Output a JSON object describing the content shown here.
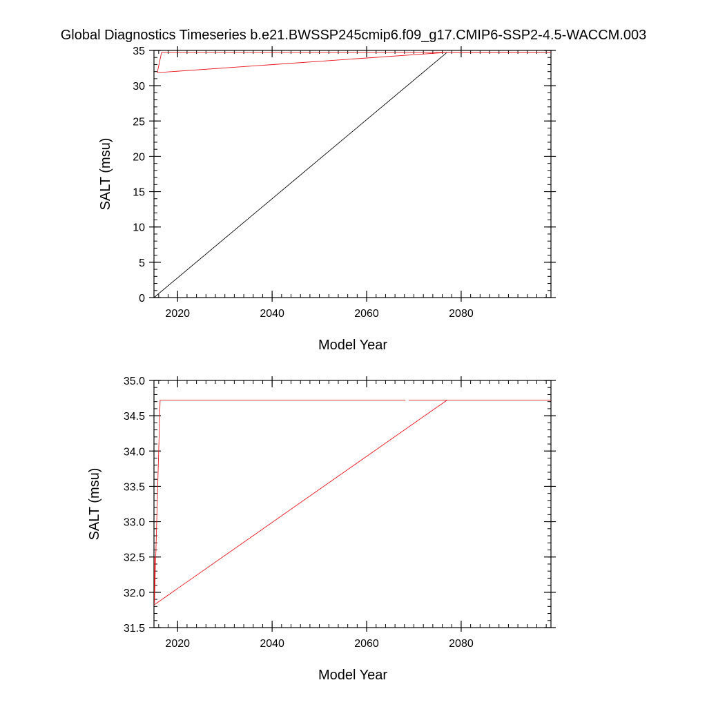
{
  "title": "Global Diagnostics Timeseries b.e21.BWSSP245cmip6.f09_g17.CMIP6-SSP2-4.5-WACCM.003",
  "colors": {
    "axis": "#000000",
    "black_series": "#000000",
    "red_series": "#e8151b"
  },
  "chart_data": [
    {
      "type": "line",
      "xlabel": "Model Year",
      "ylabel": "SALT (msu)",
      "xlim": [
        2015,
        2099
      ],
      "ylim": [
        0,
        35
      ],
      "xticks": [
        2020,
        2040,
        2060,
        2080
      ],
      "yticks": [
        0,
        5,
        10,
        15,
        20,
        25,
        30,
        35
      ],
      "x_tick_labels": [
        "2020",
        "2040",
        "2060",
        "2080"
      ],
      "y_tick_labels": [
        "0",
        "5",
        "10",
        "15",
        "20",
        "25",
        "30",
        "35"
      ],
      "series": [
        {
          "color": "#000000",
          "points": [
            [
              2015,
              0
            ],
            [
              2077,
              34.72
            ],
            [
              2099,
              34.72
            ]
          ]
        },
        {
          "color": "#e8151b",
          "points": [
            [
              2015.7,
              31.85
            ],
            [
              2016.6,
              34.72
            ],
            [
              2099,
              34.72
            ]
          ]
        },
        {
          "color": "#e8151b",
          "points": [
            [
              2015.7,
              31.85
            ],
            [
              2077,
              34.72
            ],
            [
              2096,
              34.72
            ]
          ]
        }
      ]
    },
    {
      "type": "line",
      "xlabel": "Model Year",
      "ylabel": "SALT (msu)",
      "xlim": [
        2015,
        2099
      ],
      "ylim": [
        31.5,
        35.0
      ],
      "xticks": [
        2020,
        2040,
        2060,
        2080
      ],
      "yticks": [
        31.5,
        32.0,
        32.5,
        33.0,
        33.5,
        34.0,
        34.5,
        35.0
      ],
      "x_tick_labels": [
        "2020",
        "2040",
        "2060",
        "2080"
      ],
      "y_tick_labels": [
        "31.5",
        "32.0",
        "32.5",
        "33.0",
        "33.5",
        "34.0",
        "34.5",
        "35.0"
      ],
      "series": [
        {
          "color": "#e8151b",
          "points": [
            [
              2015.1,
              31.85
            ],
            [
              2016.3,
              34.72
            ],
            [
              2068.2,
              34.72
            ]
          ]
        },
        {
          "color": "#e8151b",
          "points": [
            [
              2068.9,
              34.72
            ],
            [
              2099,
              34.72
            ]
          ]
        },
        {
          "color": "#e8151b",
          "points": [
            [
              2015,
              31.82
            ],
            [
              2077,
              34.72
            ]
          ]
        },
        {
          "color": "#e8151b",
          "points": [
            [
              2015.1,
              31.85
            ],
            [
              2015.1,
              32.5
            ]
          ]
        }
      ]
    }
  ]
}
